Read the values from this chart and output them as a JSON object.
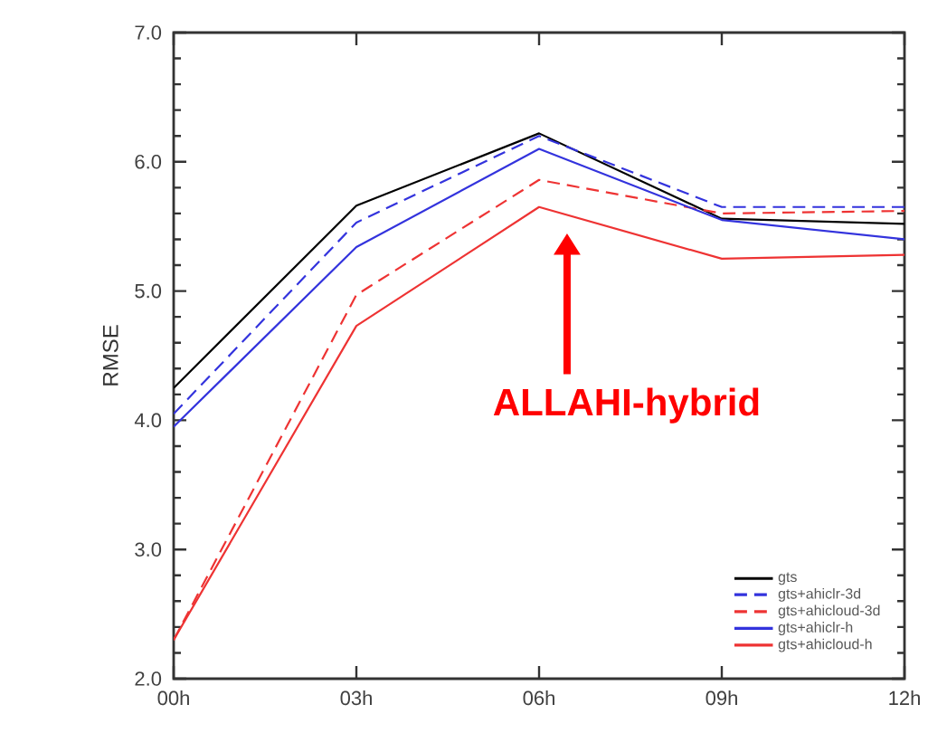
{
  "chart_data": {
    "type": "line",
    "ylabel": "RMSE",
    "x": [
      0,
      3,
      6,
      9,
      12
    ],
    "xlim": [
      0,
      12
    ],
    "xticks": [
      {
        "value": 0,
        "label": "00h"
      },
      {
        "value": 3,
        "label": "03h"
      },
      {
        "value": 6,
        "label": "06h"
      },
      {
        "value": 9,
        "label": "09h"
      },
      {
        "value": 12,
        "label": "12h"
      }
    ],
    "ylim": [
      2.0,
      7.0
    ],
    "yticks": [
      {
        "value": 2,
        "label": "2.0"
      },
      {
        "value": 3,
        "label": "3.0"
      },
      {
        "value": 4,
        "label": "4.0"
      },
      {
        "value": 5,
        "label": "5.0"
      },
      {
        "value": 6,
        "label": "6.0"
      },
      {
        "value": 7,
        "label": "7.0"
      }
    ],
    "series": [
      {
        "name": "gts",
        "color": "#000000",
        "line_style": "solid",
        "values": [
          4.25,
          5.66,
          6.22,
          5.56,
          5.52
        ]
      },
      {
        "name": "gts+ahiclr-3d",
        "color": "#3333dd",
        "line_style": "dashed",
        "values": [
          4.05,
          5.53,
          6.2,
          5.65,
          5.65
        ]
      },
      {
        "name": "gts+ahicloud-3d",
        "color": "#ee3333",
        "line_style": "dashed",
        "values": [
          2.3,
          4.97,
          5.86,
          5.6,
          5.62
        ]
      },
      {
        "name": "gts+ahiclr-h",
        "color": "#3333dd",
        "line_style": "solid",
        "values": [
          3.95,
          5.34,
          6.1,
          5.55,
          5.4
        ]
      },
      {
        "name": "gts+ahicloud-h",
        "color": "#ee3333",
        "line_style": "solid",
        "values": [
          2.3,
          4.73,
          5.65,
          5.25,
          5.28
        ]
      }
    ],
    "annotations": [
      "ALLAHI-hybrid"
    ],
    "legend": "bottom right",
    "grid": false,
    "marker": "none"
  }
}
